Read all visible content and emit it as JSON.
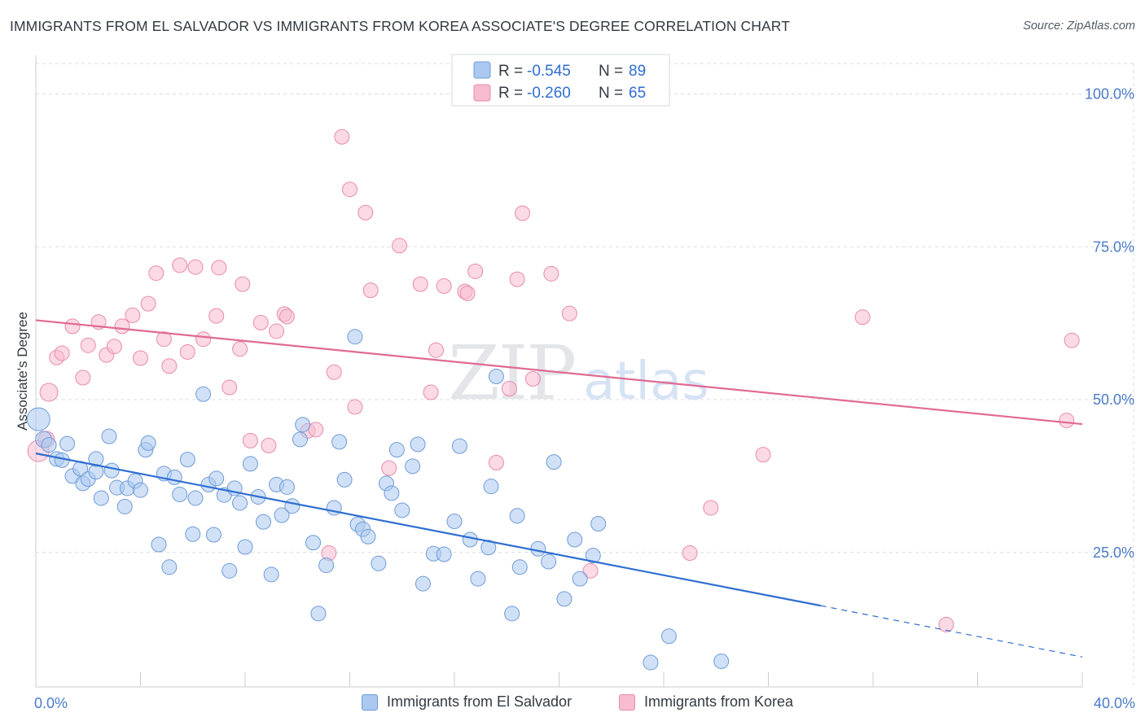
{
  "title": "IMMIGRANTS FROM EL SALVADOR VS IMMIGRANTS FROM KOREA ASSOCIATE'S DEGREE CORRELATION CHART",
  "source": "Source: ZipAtlas.com",
  "watermark": {
    "zip": "ZIP",
    "atlas": "atlas"
  },
  "colors": {
    "blue_fill": "#aac8f0",
    "blue_stroke": "#6f9bd8",
    "blue_line": "#2f6ed1",
    "pink_fill": "#f7bcd0",
    "pink_stroke": "#e98aab",
    "pink_line": "#e06a93",
    "grid": "#d9dde2",
    "tick_text": "#4a7bc8"
  },
  "chart_data": {
    "type": "scatter",
    "ylabel": "Associate's Degree",
    "xlim": [
      0,
      40
    ],
    "ylim": [
      3,
      105
    ],
    "x_ticks": [
      {
        "value": 0,
        "label": "0.0%"
      },
      {
        "value": 40,
        "label": "40.0%"
      }
    ],
    "x_minor_ticks": [
      0,
      4,
      8,
      12,
      16,
      20,
      24,
      28,
      32,
      36,
      40
    ],
    "y_ticks": [
      {
        "value": 100,
        "label": "100.0%"
      },
      {
        "value": 75,
        "label": "75.0%"
      },
      {
        "value": 50,
        "label": "50.0%"
      },
      {
        "value": 25,
        "label": "25.0%"
      }
    ],
    "legend_stats": [
      {
        "r_label": "R = ",
        "r_value": "-0.545",
        "n_label": "N = ",
        "n_value": "89"
      },
      {
        "r_label": "R = ",
        "r_value": "-0.260",
        "n_label": "N = ",
        "n_value": "65"
      }
    ],
    "series": [
      {
        "name": "Immigrants from El Salvador",
        "color": "blue",
        "trend": {
          "x0": 0,
          "y0": 41.2,
          "x1": 30,
          "y1": 16.3,
          "x_dash_end": 40,
          "y_dash_end": 7.9
        },
        "points": [
          [
            0.1,
            46.8,
            14
          ],
          [
            0.3,
            43.5,
            10
          ],
          [
            0.5,
            42.6,
            9
          ],
          [
            0.8,
            40.3,
            9
          ],
          [
            1.0,
            40.1,
            9
          ],
          [
            1.2,
            42.8,
            9
          ],
          [
            1.4,
            37.5,
            9
          ],
          [
            1.7,
            38.7,
            9
          ],
          [
            1.8,
            36.3,
            9
          ],
          [
            2.0,
            37.0,
            9
          ],
          [
            2.3,
            38.2,
            9
          ],
          [
            2.3,
            40.3,
            9
          ],
          [
            2.5,
            33.9,
            9
          ],
          [
            2.8,
            44.0,
            9
          ],
          [
            2.9,
            38.4,
            9
          ],
          [
            3.1,
            35.6,
            9
          ],
          [
            3.4,
            32.5,
            9
          ],
          [
            3.5,
            35.5,
            9
          ],
          [
            3.8,
            36.7,
            9
          ],
          [
            4.0,
            35.2,
            9
          ],
          [
            4.2,
            41.8,
            9
          ],
          [
            4.3,
            42.9,
            9
          ],
          [
            4.7,
            26.3,
            9
          ],
          [
            4.9,
            37.9,
            9
          ],
          [
            5.1,
            22.6,
            9
          ],
          [
            5.3,
            37.3,
            9
          ],
          [
            5.5,
            34.5,
            9
          ],
          [
            5.8,
            40.2,
            9
          ],
          [
            6.0,
            28.0,
            9
          ],
          [
            6.1,
            33.9,
            9
          ],
          [
            6.4,
            50.9,
            9
          ],
          [
            6.6,
            36.1,
            9
          ],
          [
            6.8,
            27.9,
            9
          ],
          [
            6.9,
            37.1,
            9
          ],
          [
            7.2,
            34.4,
            9
          ],
          [
            7.4,
            22.0,
            9
          ],
          [
            7.6,
            35.5,
            9
          ],
          [
            7.8,
            33.1,
            9
          ],
          [
            8.0,
            25.9,
            9
          ],
          [
            8.2,
            39.5,
            9
          ],
          [
            8.5,
            34.1,
            9
          ],
          [
            8.7,
            30.0,
            9
          ],
          [
            9.0,
            21.4,
            9
          ],
          [
            9.2,
            36.1,
            9
          ],
          [
            9.4,
            31.1,
            9
          ],
          [
            9.6,
            35.7,
            9
          ],
          [
            9.8,
            32.6,
            9
          ],
          [
            10.1,
            43.5,
            9
          ],
          [
            10.2,
            45.9,
            9
          ],
          [
            10.6,
            26.6,
            9
          ],
          [
            10.8,
            15.0,
            9
          ],
          [
            11.1,
            22.9,
            9
          ],
          [
            11.4,
            32.3,
            9
          ],
          [
            11.6,
            43.1,
            9
          ],
          [
            11.8,
            36.9,
            9
          ],
          [
            12.2,
            60.3,
            9
          ],
          [
            12.3,
            29.6,
            9
          ],
          [
            12.5,
            28.8,
            9
          ],
          [
            12.7,
            27.6,
            9
          ],
          [
            13.1,
            23.2,
            9
          ],
          [
            13.4,
            36.3,
            9
          ],
          [
            13.6,
            34.7,
            9
          ],
          [
            13.8,
            41.8,
            9
          ],
          [
            14.0,
            31.9,
            9
          ],
          [
            14.4,
            39.1,
            9
          ],
          [
            14.6,
            42.7,
            9
          ],
          [
            14.8,
            19.9,
            9
          ],
          [
            15.2,
            24.8,
            9
          ],
          [
            15.6,
            24.7,
            9
          ],
          [
            16.0,
            30.1,
            9
          ],
          [
            16.2,
            42.4,
            9
          ],
          [
            16.6,
            27.1,
            9
          ],
          [
            16.9,
            20.7,
            9
          ],
          [
            17.3,
            25.8,
            9
          ],
          [
            17.4,
            35.8,
            9
          ],
          [
            17.6,
            53.8,
            9
          ],
          [
            18.2,
            15.0,
            9
          ],
          [
            18.4,
            31.0,
            9
          ],
          [
            18.5,
            22.6,
            9
          ],
          [
            19.2,
            25.6,
            9
          ],
          [
            19.6,
            23.5,
            9
          ],
          [
            19.8,
            39.8,
            9
          ],
          [
            20.2,
            17.4,
            9
          ],
          [
            20.6,
            27.1,
            9
          ],
          [
            20.8,
            20.7,
            9
          ],
          [
            21.3,
            24.5,
            9
          ],
          [
            21.5,
            29.7,
            9
          ],
          [
            23.5,
            7.0,
            9
          ],
          [
            24.2,
            11.3,
            9
          ],
          [
            26.2,
            7.2,
            9
          ]
        ]
      },
      {
        "name": "Immigrants from Korea",
        "color": "pink",
        "trend": {
          "x0": 0,
          "y0": 63.0,
          "x1": 40,
          "y1": 46.0
        },
        "points": [
          [
            0.1,
            41.6,
            13
          ],
          [
            0.4,
            43.5,
            10
          ],
          [
            0.5,
            51.2,
            11
          ],
          [
            0.8,
            56.9,
            9
          ],
          [
            1.0,
            57.6,
            9
          ],
          [
            1.4,
            62.0,
            9
          ],
          [
            1.8,
            53.6,
            9
          ],
          [
            2.0,
            58.9,
            9
          ],
          [
            2.4,
            62.7,
            9
          ],
          [
            2.7,
            57.3,
            9
          ],
          [
            3.0,
            58.7,
            9
          ],
          [
            3.3,
            62.0,
            9
          ],
          [
            3.7,
            63.8,
            9
          ],
          [
            4.0,
            56.8,
            9
          ],
          [
            4.3,
            65.7,
            9
          ],
          [
            4.6,
            70.7,
            9
          ],
          [
            4.9,
            59.9,
            9
          ],
          [
            5.1,
            55.5,
            9
          ],
          [
            5.5,
            72.0,
            9
          ],
          [
            5.8,
            57.8,
            9
          ],
          [
            6.1,
            71.7,
            9
          ],
          [
            6.4,
            59.9,
            9
          ],
          [
            6.9,
            63.7,
            9
          ],
          [
            7.0,
            71.6,
            9
          ],
          [
            7.4,
            52.0,
            9
          ],
          [
            7.8,
            58.3,
            9
          ],
          [
            7.9,
            68.9,
            9
          ],
          [
            8.2,
            43.3,
            9
          ],
          [
            8.6,
            62.6,
            9
          ],
          [
            8.9,
            42.5,
            9
          ],
          [
            9.2,
            61.2,
            9
          ],
          [
            9.5,
            64.0,
            9
          ],
          [
            9.6,
            63.6,
            9
          ],
          [
            10.4,
            44.9,
            9
          ],
          [
            10.7,
            45.1,
            9
          ],
          [
            11.2,
            24.9,
            9
          ],
          [
            11.4,
            54.5,
            9
          ],
          [
            11.7,
            93.0,
            9
          ],
          [
            12.0,
            84.4,
            9
          ],
          [
            12.2,
            48.8,
            9
          ],
          [
            12.6,
            80.6,
            9
          ],
          [
            12.8,
            67.9,
            9
          ],
          [
            13.5,
            38.8,
            9
          ],
          [
            13.9,
            75.2,
            9
          ],
          [
            14.7,
            68.9,
            9
          ],
          [
            15.1,
            51.2,
            9
          ],
          [
            15.3,
            58.1,
            9
          ],
          [
            15.6,
            68.6,
            9
          ],
          [
            16.4,
            67.7,
            9
          ],
          [
            16.5,
            67.4,
            9
          ],
          [
            16.8,
            71.0,
            9
          ],
          [
            17.6,
            39.7,
            9
          ],
          [
            18.1,
            51.8,
            9
          ],
          [
            18.4,
            69.7,
            9
          ],
          [
            18.6,
            80.5,
            9
          ],
          [
            19.0,
            53.4,
            9
          ],
          [
            19.7,
            70.6,
            9
          ],
          [
            20.4,
            64.1,
            9
          ],
          [
            21.2,
            22.0,
            9
          ],
          [
            25.0,
            24.9,
            9
          ],
          [
            25.8,
            32.3,
            9
          ],
          [
            27.8,
            41.0,
            9
          ],
          [
            31.6,
            63.5,
            9
          ],
          [
            34.8,
            13.2,
            9
          ],
          [
            39.4,
            46.6,
            9
          ],
          [
            39.6,
            59.7,
            9
          ]
        ]
      }
    ]
  }
}
